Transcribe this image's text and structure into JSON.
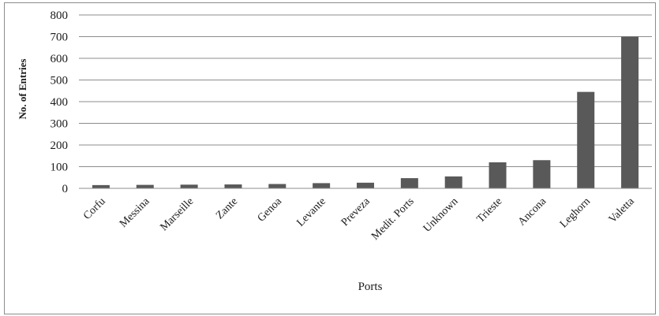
{
  "chart_data": {
    "type": "bar",
    "categories": [
      "Corfu",
      "Messina",
      "Marseille",
      "Zante",
      "Genoa",
      "Levante",
      "Preveza",
      "Medit. Ports",
      "Unknown",
      "Trieste",
      "Ancona",
      "Leghorn",
      "Valetta"
    ],
    "values": [
      15,
      16,
      17,
      18,
      20,
      24,
      26,
      47,
      55,
      120,
      130,
      445,
      700
    ],
    "xlabel": "Ports",
    "ylabel": "No. of Entries",
    "ylim": [
      0,
      800
    ],
    "yticks": [
      0,
      100,
      200,
      300,
      400,
      500,
      600,
      700,
      800
    ],
    "grid": true,
    "legend": "none",
    "bar_color": "#595959"
  }
}
